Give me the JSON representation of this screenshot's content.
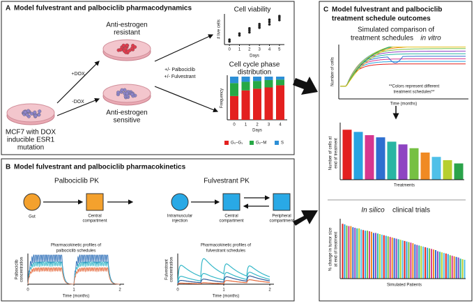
{
  "panel_a": {
    "label": "A",
    "title": "Model fulvestrant and palbociclib pharmacodynamics",
    "parent_cells": [
      "MCF7 with DOX",
      "inducible ESR1",
      "mutation"
    ],
    "plus_dox": "+DOX",
    "minus_dox": "-DOX",
    "resistant": [
      "Anti-estrogen",
      "resistant"
    ],
    "sensitive": [
      "Anti-estrogen",
      "sensitive"
    ],
    "treatments": [
      "+/- Palbociclib",
      "+/- Fulvestrant"
    ],
    "viability": {
      "type": "scatter",
      "title": "Cell viability",
      "y_label": "# live cells",
      "x_label": "Days",
      "x": [
        0,
        0,
        1,
        1,
        2,
        2,
        2,
        3,
        3,
        3,
        4,
        4,
        4,
        5,
        5,
        5
      ],
      "values": [
        1,
        1.6,
        3,
        3.6,
        4,
        4.7,
        5.3,
        5.5,
        6.1,
        6.7,
        6.6,
        7.4,
        8.1,
        8,
        8.7,
        9.3
      ],
      "color": "#222222",
      "xlim": [
        -0.5,
        5.5
      ],
      "ylim": [
        0,
        10
      ],
      "xticks": [
        0,
        1,
        2,
        3,
        4,
        5
      ]
    },
    "cell_cycle": {
      "type": "bar",
      "title": [
        "Cell cycle phase",
        "distribution"
      ],
      "y_label": "Frequency",
      "x_label": "Days",
      "categories": [
        "0",
        "1",
        "2",
        "3",
        "4"
      ],
      "ylim": [
        0,
        1
      ],
      "series": [
        {
          "name": "G₀–G₁",
          "color": "#e3201f",
          "values": [
            0.55,
            0.68,
            0.72,
            0.75,
            0.8
          ]
        },
        {
          "name": "G₂–M",
          "color": "#27a845",
          "values": [
            0.3,
            0.2,
            0.18,
            0.17,
            0.13
          ]
        },
        {
          "name": "S",
          "color": "#2c8fd6",
          "values": [
            0.15,
            0.12,
            0.1,
            0.08,
            0.07
          ]
        }
      ]
    }
  },
  "panel_b": {
    "label": "B",
    "title": "Model fulvestrant and palbociclib pharmacokinetics",
    "palbociclib_pk": {
      "title": "Palbociclib PK",
      "gut": "Gut",
      "central": [
        "Central",
        "compartment"
      ],
      "plot_title": [
        "Pharmacokinetic profiles of",
        "palbociclib schedules"
      ],
      "y_label": [
        "Palbociclib",
        "concentration"
      ],
      "x_label": "Time (months)",
      "xticks": [
        0,
        1,
        2
      ],
      "xlim": [
        0,
        2
      ]
    },
    "fulvestrant_pk": {
      "title": "Fulvestrant PK",
      "injection": [
        "Intramuscular",
        "injection"
      ],
      "central": [
        "Central",
        "compartment"
      ],
      "peripheral": [
        "Peripheral",
        "compartment"
      ],
      "plot_title": [
        "Pharmacokinetic profiles of",
        "fulvestrant schedules"
      ],
      "y_label": [
        "Fulvestrant",
        "concentration"
      ],
      "x_label": "Time (months)",
      "xticks": [
        0,
        1,
        2
      ],
      "xlim": [
        0,
        2
      ]
    }
  },
  "panel_c": {
    "label": "C",
    "title": [
      "Model fulvestrant and palbociclib",
      "treatment schedule outcomes"
    ],
    "in_vitro": {
      "title": [
        "Simulated comparison of",
        "treatment schedules",
        "in vitro"
      ],
      "y_label": "Number of cells",
      "x_label": "Time (months)",
      "note": [
        "**Colors represent different",
        "treatment schedules**"
      ]
    },
    "end_of_treatment": {
      "type": "bar",
      "y_label": [
        "Number of cells at",
        "end of treatment"
      ],
      "x_label": "Treatments",
      "ylim": [
        0,
        100
      ],
      "values": [
        92,
        88,
        82,
        78,
        70,
        65,
        58,
        50,
        42,
        36,
        30
      ],
      "colors": [
        "#e3201f",
        "#29a3e0",
        "#d6368f",
        "#2e6fd0",
        "#28b5a3",
        "#8e44c2",
        "#76c043",
        "#f08a24",
        "#4fc0e8",
        "#b7cf2f",
        "#2aa34a"
      ]
    },
    "clinical": {
      "type": "bar",
      "title": [
        "In silico",
        "clinical trials"
      ],
      "y_label": [
        "% change in tumor size",
        "at end of treatment"
      ],
      "x_label": "Simulated Patients",
      "ylim": [
        0,
        100
      ],
      "values": [
        96,
        95,
        93,
        92,
        92,
        90,
        89,
        88,
        88,
        86,
        85,
        84,
        84,
        83,
        82,
        80,
        80,
        79,
        78,
        77,
        76,
        75,
        74,
        73,
        72,
        71,
        70,
        69,
        68,
        67,
        66,
        65,
        64,
        63,
        62,
        60,
        59,
        58,
        57,
        56,
        55,
        54,
        53,
        52,
        51,
        50,
        48,
        47,
        46,
        45,
        44,
        43,
        41,
        40,
        39,
        38,
        37,
        35,
        34,
        33
      ],
      "colors": [
        "#e3201f",
        "#29a3e0",
        "#76c043",
        "#d6368f",
        "#f08a24",
        "#2e6fd0",
        "#8e44c2",
        "#28b5a3",
        "#b7cf2f",
        "#4fc0e8"
      ]
    }
  }
}
